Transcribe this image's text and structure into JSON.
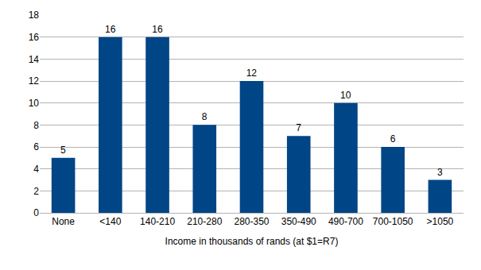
{
  "chart_data": {
    "type": "bar",
    "x_label": "Income in thousands of rands (at $1=R7)",
    "categories": [
      "None",
      "<140",
      "140-210",
      "210-280",
      "280-350",
      "350-490",
      "490-700",
      "700-1050",
      ">1050"
    ],
    "values": [
      5,
      16,
      16,
      8,
      12,
      7,
      10,
      6,
      3
    ],
    "color": "#004586",
    "ylim": [
      0,
      18
    ],
    "yticks": [
      0,
      2,
      4,
      6,
      8,
      10,
      12,
      14,
      16,
      18
    ],
    "grid": true,
    "data_labels": true
  }
}
